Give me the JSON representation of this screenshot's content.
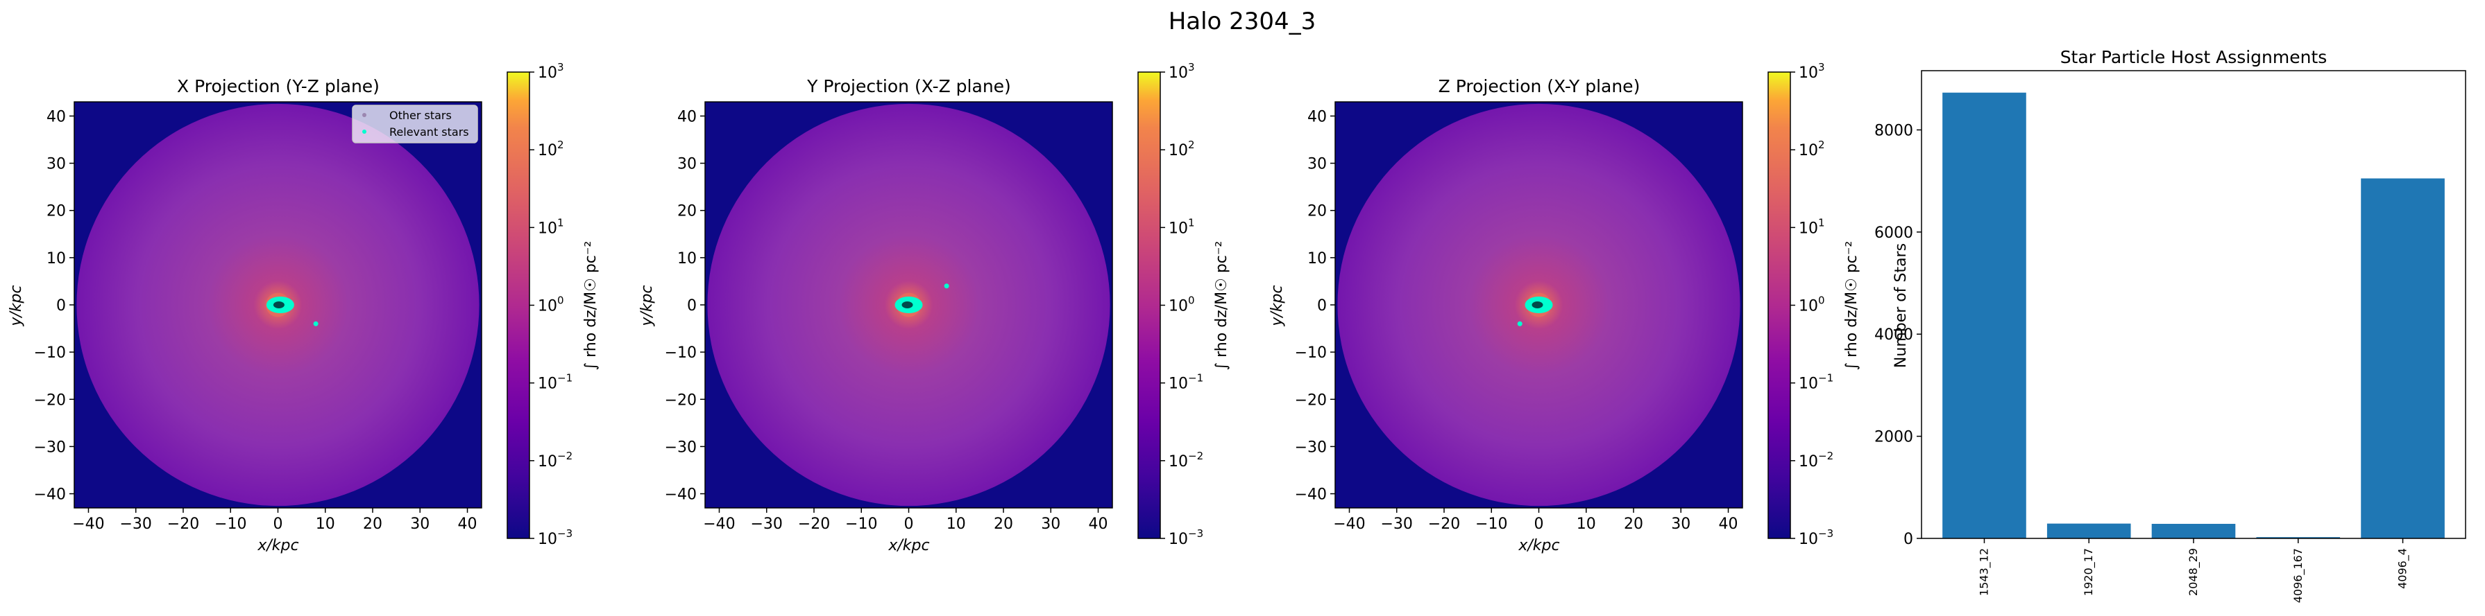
{
  "figure": {
    "suptitle": "Halo 2304_3"
  },
  "colors": {
    "bar": "#1f77b4",
    "relevant_stars": "#00ffd0",
    "other_stars": "#9b86b0",
    "background": "#ffffff"
  },
  "chart_data": [
    {
      "type": "heatmap",
      "title": "X Projection (Y-Z plane)",
      "xlabel": "x/kpc",
      "ylabel": "y/kpc",
      "xlim": [
        -43,
        43
      ],
      "ylim": [
        -43,
        43
      ],
      "xticks": [
        "−40",
        "−30",
        "−20",
        "−10",
        "0",
        "10",
        "20",
        "30",
        "40"
      ],
      "yticks": [
        "−40",
        "−30",
        "−20",
        "−10",
        "0",
        "10",
        "20",
        "30",
        "40"
      ],
      "tick_values": [
        -40,
        -30,
        -20,
        -10,
        0,
        10,
        20,
        30,
        40
      ],
      "colormap": "plasma",
      "colorbar": {
        "label": "∫ rho dz/M☉ pc⁻²",
        "scale": "log",
        "range": [
          0.001,
          1000
        ],
        "ticks": [
          {
            "base": "10",
            "exp": "3",
            "value": 1000
          },
          {
            "base": "10",
            "exp": "2",
            "value": 100
          },
          {
            "base": "10",
            "exp": "1",
            "value": 10
          },
          {
            "base": "10",
            "exp": "0",
            "value": 1
          },
          {
            "base": "10",
            "exp": "−1",
            "value": 0.1
          },
          {
            "base": "10",
            "exp": "−2",
            "value": 0.01
          },
          {
            "base": "10",
            "exp": "−3",
            "value": 0.001
          }
        ]
      },
      "relevant_stars_center": [
        0.5,
        0
      ],
      "extra_stars": [
        [
          8,
          -4
        ]
      ],
      "legend": {
        "location": "upper right",
        "entries": [
          "Other stars",
          "Relevant stars"
        ]
      }
    },
    {
      "type": "heatmap",
      "title": "Y Projection (X-Z plane)",
      "xlabel": "x/kpc",
      "ylabel": "y/kpc",
      "xlim": [
        -43,
        43
      ],
      "ylim": [
        -43,
        43
      ],
      "xticks": [
        "−40",
        "−30",
        "−20",
        "−10",
        "0",
        "10",
        "20",
        "30",
        "40"
      ],
      "yticks": [
        "−40",
        "−30",
        "−20",
        "−10",
        "0",
        "10",
        "20",
        "30",
        "40"
      ],
      "tick_values": [
        -40,
        -30,
        -20,
        -10,
        0,
        10,
        20,
        30,
        40
      ],
      "colormap": "plasma",
      "colorbar": {
        "label": "∫ rho dz/M☉ pc⁻²",
        "scale": "log",
        "range": [
          0.001,
          1000
        ],
        "ticks": [
          {
            "base": "10",
            "exp": "3",
            "value": 1000
          },
          {
            "base": "10",
            "exp": "2",
            "value": 100
          },
          {
            "base": "10",
            "exp": "1",
            "value": 10
          },
          {
            "base": "10",
            "exp": "0",
            "value": 1
          },
          {
            "base": "10",
            "exp": "−1",
            "value": 0.1
          },
          {
            "base": "10",
            "exp": "−2",
            "value": 0.01
          },
          {
            "base": "10",
            "exp": "−3",
            "value": 0.001
          }
        ]
      },
      "relevant_stars_center": [
        0,
        0
      ],
      "extra_stars": [
        [
          8,
          4
        ]
      ]
    },
    {
      "type": "heatmap",
      "title": "Z Projection (X-Y plane)",
      "xlabel": "x/kpc",
      "ylabel": "y/kpc",
      "xlim": [
        -43,
        43
      ],
      "ylim": [
        -43,
        43
      ],
      "xticks": [
        "−40",
        "−30",
        "−20",
        "−10",
        "0",
        "10",
        "20",
        "30",
        "40"
      ],
      "yticks": [
        "−40",
        "−30",
        "−20",
        "−10",
        "0",
        "10",
        "20",
        "30",
        "40"
      ],
      "tick_values": [
        -40,
        -30,
        -20,
        -10,
        0,
        10,
        20,
        30,
        40
      ],
      "colormap": "plasma",
      "colorbar": {
        "label": "∫ rho dz/M☉ pc⁻²",
        "scale": "log",
        "range": [
          0.001,
          1000
        ],
        "ticks": [
          {
            "base": "10",
            "exp": "3",
            "value": 1000
          },
          {
            "base": "10",
            "exp": "2",
            "value": 100
          },
          {
            "base": "10",
            "exp": "1",
            "value": 10
          },
          {
            "base": "10",
            "exp": "0",
            "value": 1
          },
          {
            "base": "10",
            "exp": "−1",
            "value": 0.1
          },
          {
            "base": "10",
            "exp": "−2",
            "value": 0.01
          },
          {
            "base": "10",
            "exp": "−3",
            "value": 0.001
          }
        ]
      },
      "relevant_stars_center": [
        0,
        0
      ],
      "extra_stars": [
        [
          -4,
          -4
        ]
      ]
    },
    {
      "type": "bar",
      "title": "Star Particle Host Assignments",
      "ylabel": "Number of Stars",
      "categories": [
        "1543_12",
        "1920_17",
        "2048_29",
        "4096_167",
        "4096_4"
      ],
      "values": [
        8730,
        290,
        285,
        25,
        7050
      ],
      "ylim": [
        0,
        9160
      ],
      "yticks": [
        0,
        2000,
        4000,
        6000,
        8000
      ]
    }
  ]
}
